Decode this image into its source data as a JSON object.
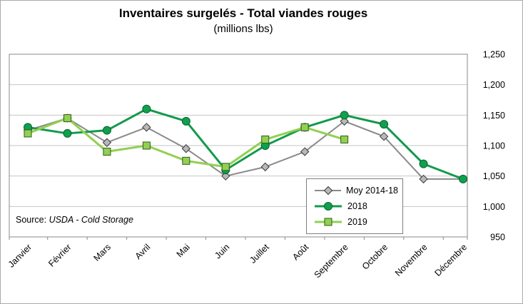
{
  "chart_data": {
    "type": "line",
    "title": "Inventaires surgelés - Total viandes rouges",
    "subtitle": "(millions lbs)",
    "categories": [
      "Janvier",
      "Février",
      "Mars",
      "Avril",
      "Mai",
      "Juin",
      "Juillet",
      "Août",
      "Septembre",
      "Octobre",
      "Novembre",
      "Décembre"
    ],
    "series": [
      {
        "name": "Moy 2014-18",
        "marker": "diamond",
        "line_color": "#8a8a8a",
        "line_width": 2,
        "marker_fill": "#b8b8b8",
        "marker_stroke": "#3a3a3a",
        "values": [
          1125,
          1145,
          1105,
          1130,
          1095,
          1050,
          1065,
          1090,
          1140,
          1115,
          1045,
          1045
        ]
      },
      {
        "name": "2018",
        "marker": "circle",
        "line_color": "#139a4b",
        "line_width": 3,
        "marker_fill": "#0fa04e",
        "marker_stroke": "#0a6231",
        "values": [
          1130,
          1120,
          1125,
          1160,
          1140,
          1060,
          1100,
          1130,
          1150,
          1135,
          1070,
          1045
        ]
      },
      {
        "name": "2019",
        "marker": "square",
        "line_color": "#92d050",
        "line_width": 3,
        "marker_fill": "#92d050",
        "marker_stroke": "#2f5b1f",
        "values": [
          1120,
          1145,
          1090,
          1100,
          1075,
          1065,
          1110,
          1130,
          1110,
          null,
          null,
          null
        ]
      }
    ],
    "ylim": [
      950,
      1250
    ],
    "yticks": [
      {
        "value": 950,
        "label": "950"
      },
      {
        "value": 1000,
        "label": "1,000"
      },
      {
        "value": 1050,
        "label": "1,050"
      },
      {
        "value": 1100,
        "label": "1,100"
      },
      {
        "value": 1150,
        "label": "1,150"
      },
      {
        "value": 1200,
        "label": "1,200"
      },
      {
        "value": 1250,
        "label": "1,250"
      }
    ],
    "grid": true,
    "legend_position": "inside-bottom-box"
  },
  "source": {
    "prefix": "Source: ",
    "text": "USDA - Cold Storage"
  }
}
